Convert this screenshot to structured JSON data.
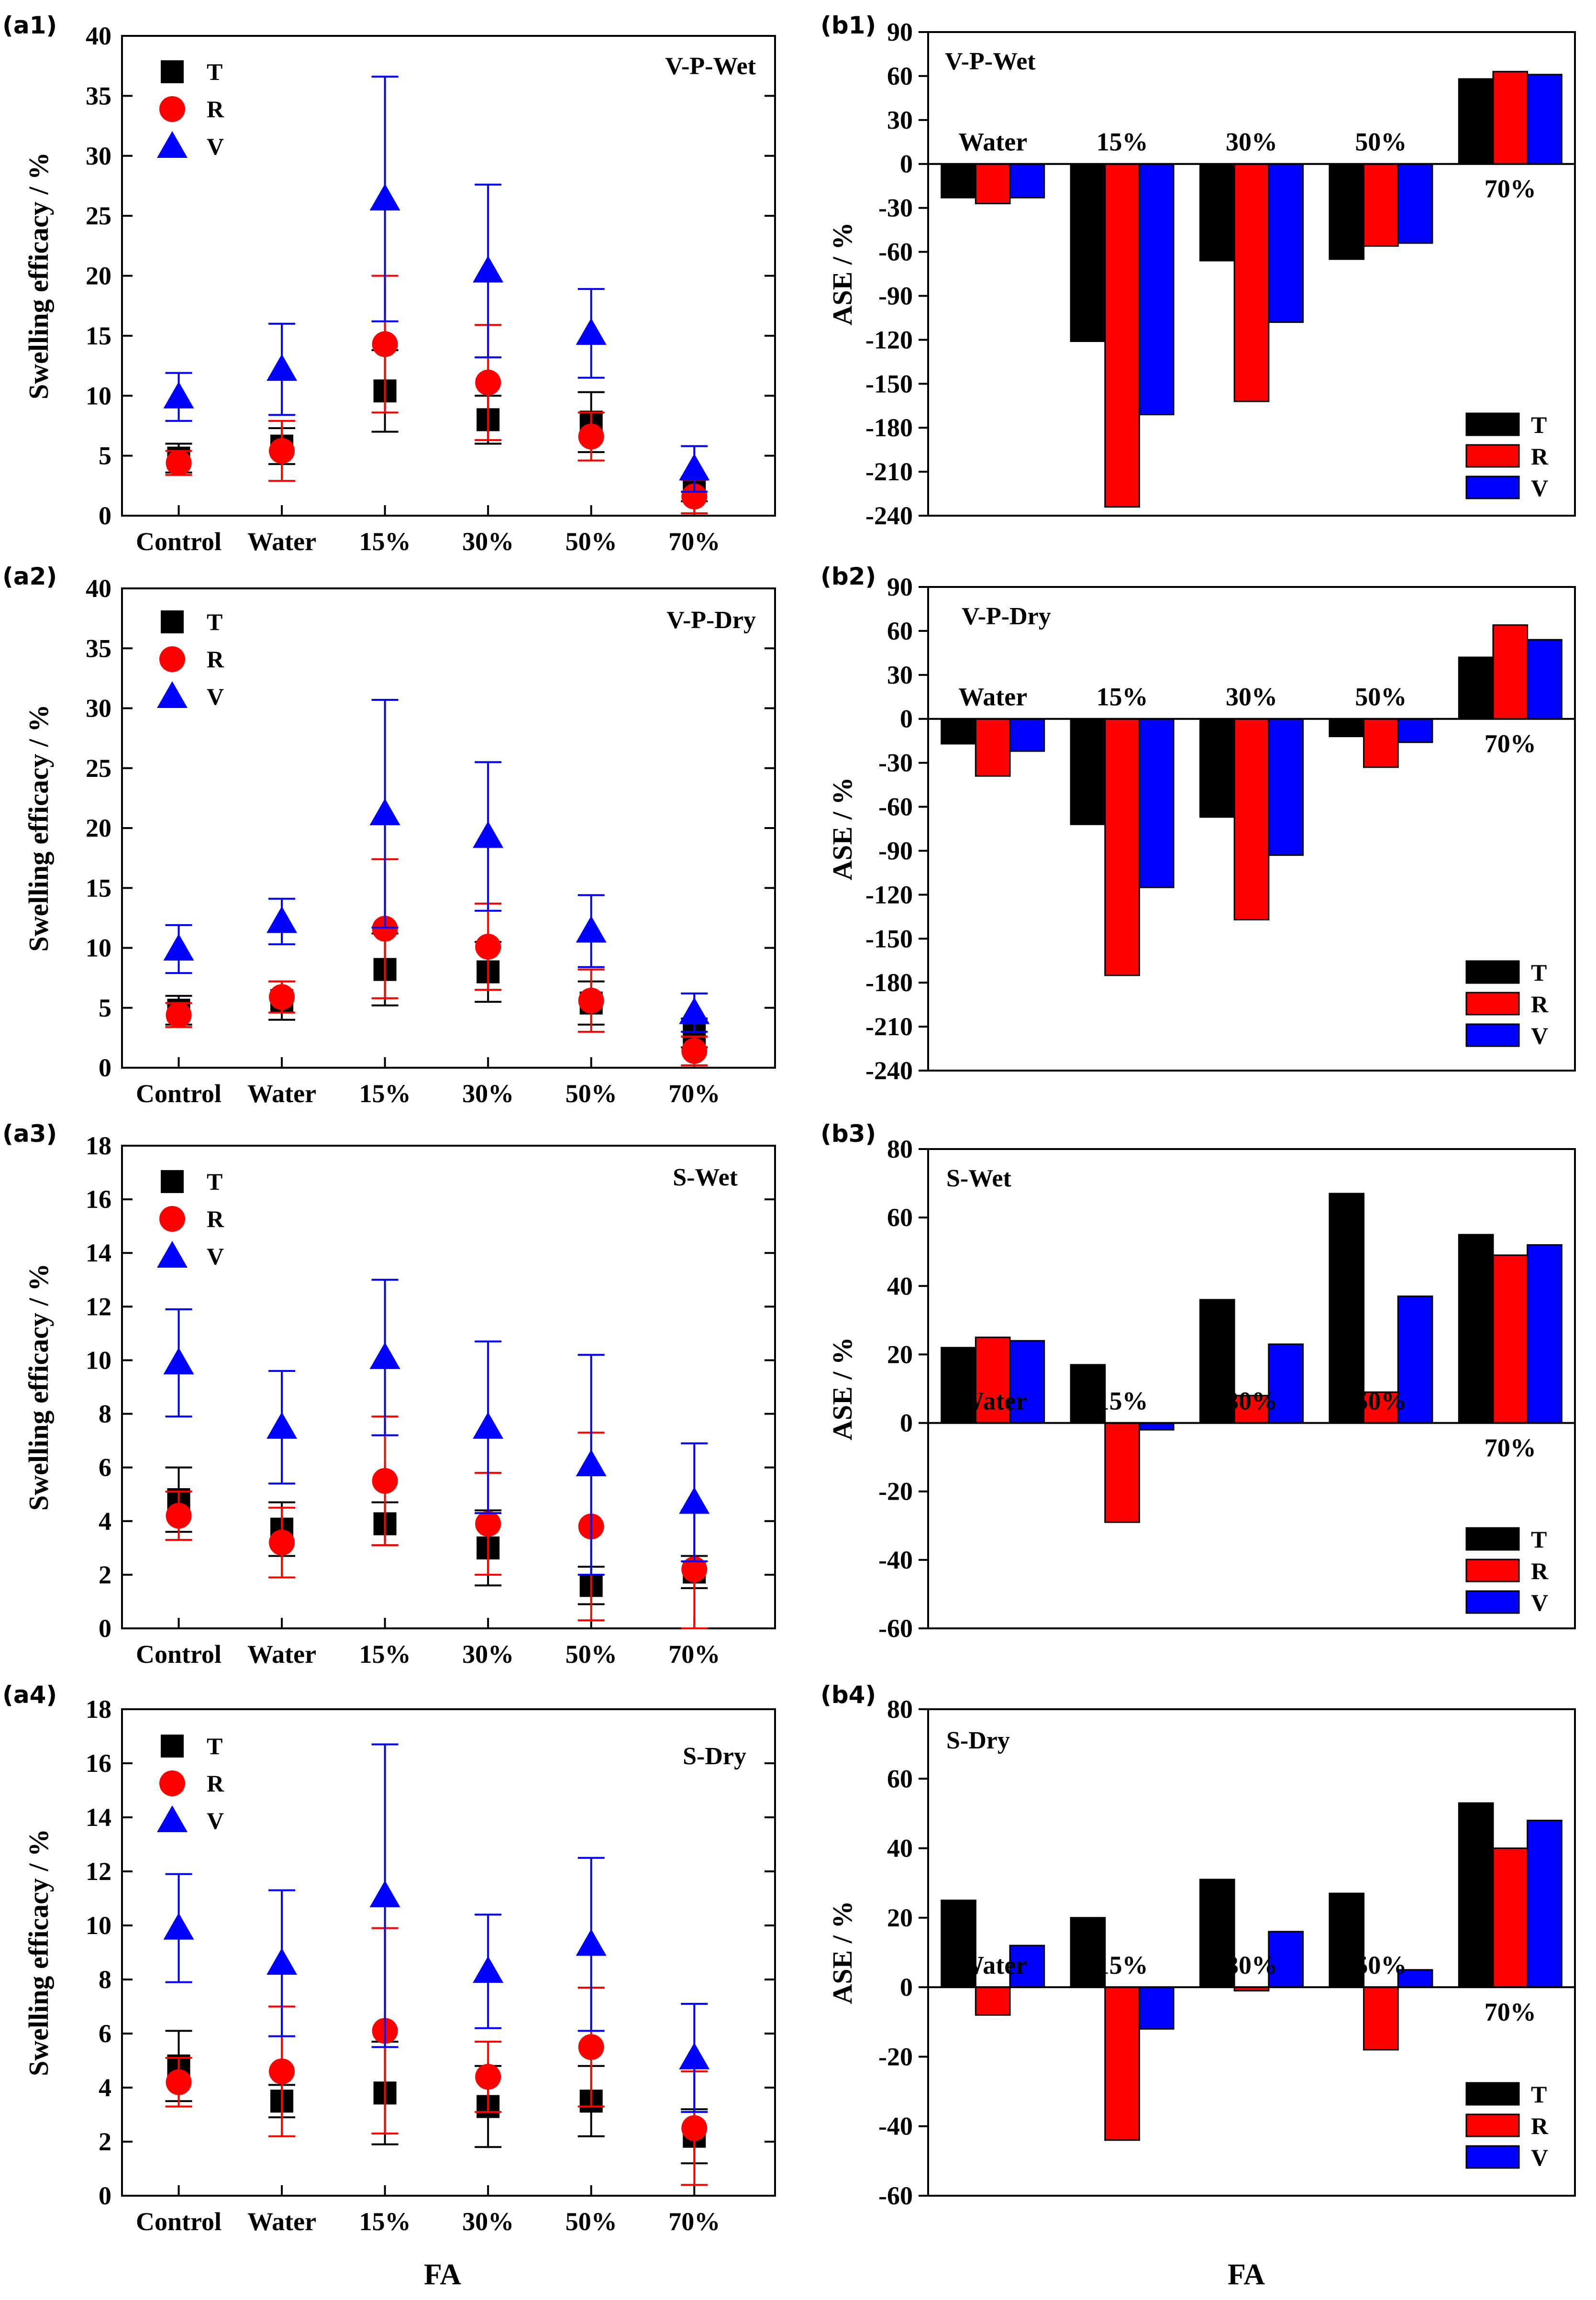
{
  "figure": {
    "x_axis_title": "FA",
    "series_colors": {
      "T": "#000000",
      "R": "#ff0000",
      "V": "#0000ff"
    }
  },
  "chart_data": [
    {
      "id": "a1",
      "panel_label": "(a1)",
      "type": "scatter",
      "title": "V-P-Wet",
      "xlabel": "",
      "ylabel": "Swelling efficacy / %",
      "categories": [
        "Control",
        "Water",
        "15%",
        "30%",
        "50%",
        "70%"
      ],
      "ylim": [
        0,
        40
      ],
      "yticks": [
        0,
        5,
        10,
        15,
        20,
        25,
        30,
        35,
        40
      ],
      "series": [
        {
          "name": "T",
          "marker": "square",
          "color": "#000000",
          "values": [
            4.8,
            5.8,
            10.4,
            8.0,
            7.8,
            2.2
          ],
          "errors": [
            1.2,
            1.5,
            3.4,
            2.0,
            2.5,
            1.0
          ]
        },
        {
          "name": "R",
          "marker": "circle",
          "color": "#ff0000",
          "values": [
            4.4,
            5.4,
            14.3,
            11.1,
            6.6,
            1.6
          ],
          "errors": [
            1.0,
            2.5,
            5.7,
            4.8,
            2.0,
            1.4
          ]
        },
        {
          "name": "V",
          "marker": "triangle",
          "color": "#0000ff",
          "values": [
            9.9,
            12.2,
            26.4,
            20.4,
            15.2,
            3.9
          ],
          "errors": [
            2.0,
            3.8,
            10.2,
            7.2,
            3.7,
            1.9
          ]
        }
      ]
    },
    {
      "id": "b1",
      "panel_label": "(b1)",
      "type": "bar",
      "title": "V-P-Wet",
      "xlabel": "",
      "ylabel": "ASE / %",
      "categories": [
        "Water",
        "15%",
        "30%",
        "50%",
        "70%"
      ],
      "ylim": [
        -240,
        90
      ],
      "yticks": [
        90,
        60,
        30,
        0,
        -30,
        -60,
        -90,
        -120,
        -150,
        -180,
        -210,
        -240
      ],
      "series": [
        {
          "name": "T",
          "color": "#000000",
          "values": [
            -23,
            -121,
            -66,
            -65,
            58
          ]
        },
        {
          "name": "R",
          "color": "#ff0000",
          "values": [
            -27,
            -234,
            -162,
            -56,
            63
          ]
        },
        {
          "name": "V",
          "color": "#0000ff",
          "values": [
            -23,
            -171,
            -108,
            -54,
            61
          ]
        }
      ]
    },
    {
      "id": "a2",
      "panel_label": "(a2)",
      "type": "scatter",
      "title": "V-P-Dry",
      "xlabel": "",
      "ylabel": "Swelling efficacy / %",
      "categories": [
        "Control",
        "Water",
        "15%",
        "30%",
        "50%",
        "70%"
      ],
      "ylim": [
        0,
        40
      ],
      "yticks": [
        0,
        5,
        10,
        15,
        20,
        25,
        30,
        35,
        40
      ],
      "series": [
        {
          "name": "T",
          "marker": "square",
          "color": "#000000",
          "values": [
            4.8,
            5.6,
            8.2,
            8.0,
            5.4,
            2.9
          ],
          "errors": [
            1.2,
            1.6,
            3.0,
            2.5,
            1.8,
            1.2
          ]
        },
        {
          "name": "R",
          "marker": "circle",
          "color": "#ff0000",
          "values": [
            4.4,
            5.9,
            11.6,
            10.1,
            5.6,
            1.4
          ],
          "errors": [
            1.0,
            1.3,
            5.8,
            3.6,
            2.6,
            1.2
          ]
        },
        {
          "name": "V",
          "marker": "triangle",
          "color": "#0000ff",
          "values": [
            9.9,
            12.2,
            21.2,
            19.3,
            11.4,
            4.6
          ],
          "errors": [
            2.0,
            1.9,
            9.5,
            6.2,
            3.0,
            1.6
          ]
        }
      ]
    },
    {
      "id": "b2",
      "panel_label": "(b2)",
      "type": "bar",
      "title": "V-P-Dry",
      "xlabel": "",
      "ylabel": "ASE / %",
      "categories": [
        "Water",
        "15%",
        "30%",
        "50%",
        "70%"
      ],
      "ylim": [
        -240,
        90
      ],
      "yticks": [
        90,
        60,
        30,
        0,
        -30,
        -60,
        -90,
        -120,
        -150,
        -180,
        -210,
        -240
      ],
      "series": [
        {
          "name": "T",
          "color": "#000000",
          "values": [
            -17,
            -72,
            -67,
            -12,
            42
          ]
        },
        {
          "name": "R",
          "color": "#ff0000",
          "values": [
            -39,
            -175,
            -137,
            -33,
            64
          ]
        },
        {
          "name": "V",
          "color": "#0000ff",
          "values": [
            -22,
            -115,
            -93,
            -16,
            54
          ]
        }
      ]
    },
    {
      "id": "a3",
      "panel_label": "(a3)",
      "type": "scatter",
      "title": "S-Wet",
      "xlabel": "",
      "ylabel": "Swelling efficacy / %",
      "categories": [
        "Control",
        "Water",
        "15%",
        "30%",
        "50%",
        "70%"
      ],
      "ylim": [
        0,
        18
      ],
      "yticks": [
        0,
        2,
        4,
        6,
        8,
        10,
        12,
        14,
        16,
        18
      ],
      "series": [
        {
          "name": "T",
          "marker": "square",
          "color": "#000000",
          "values": [
            4.8,
            3.7,
            3.9,
            3.0,
            1.6,
            2.1
          ],
          "errors": [
            1.2,
            1.0,
            0.8,
            1.4,
            0.7,
            0.6
          ]
        },
        {
          "name": "R",
          "marker": "circle",
          "color": "#ff0000",
          "values": [
            4.2,
            3.2,
            5.5,
            3.9,
            3.8,
            2.2
          ],
          "errors": [
            0.9,
            1.3,
            2.4,
            1.9,
            3.5,
            2.2
          ]
        },
        {
          "name": "V",
          "marker": "triangle",
          "color": "#0000ff",
          "values": [
            9.9,
            7.5,
            10.1,
            7.5,
            6.1,
            4.7
          ],
          "errors": [
            2.0,
            2.1,
            2.9,
            3.2,
            4.1,
            2.2
          ]
        }
      ]
    },
    {
      "id": "b3",
      "panel_label": "(b3)",
      "type": "bar",
      "title": "S-Wet",
      "xlabel": "",
      "ylabel": "ASE / %",
      "categories": [
        "Water",
        "15%",
        "30%",
        "50%",
        "70%"
      ],
      "ylim": [
        -60,
        80
      ],
      "yticks": [
        80,
        60,
        40,
        20,
        0,
        -20,
        -40,
        -60
      ],
      "series": [
        {
          "name": "T",
          "color": "#000000",
          "values": [
            22,
            17,
            36,
            67,
            55
          ]
        },
        {
          "name": "R",
          "color": "#ff0000",
          "values": [
            25,
            -29,
            8,
            9,
            49
          ]
        },
        {
          "name": "V",
          "color": "#0000ff",
          "values": [
            24,
            -2,
            23,
            37,
            52
          ]
        }
      ]
    },
    {
      "id": "a4",
      "panel_label": "(a4)",
      "type": "scatter",
      "title": "S-Dry",
      "xlabel": "",
      "ylabel": "Swelling efficacy / %",
      "categories": [
        "Control",
        "Water",
        "15%",
        "30%",
        "50%",
        "70%"
      ],
      "ylim": [
        0,
        18
      ],
      "yticks": [
        0,
        2,
        4,
        6,
        8,
        10,
        12,
        14,
        16,
        18
      ],
      "series": [
        {
          "name": "T",
          "marker": "square",
          "color": "#000000",
          "values": [
            4.8,
            3.5,
            3.8,
            3.3,
            3.5,
            2.2
          ],
          "errors": [
            1.3,
            0.6,
            1.9,
            1.5,
            1.3,
            1.0
          ]
        },
        {
          "name": "R",
          "marker": "circle",
          "color": "#ff0000",
          "values": [
            4.2,
            4.6,
            6.1,
            4.4,
            5.5,
            2.5
          ],
          "errors": [
            0.9,
            2.4,
            3.8,
            1.3,
            2.2,
            2.1
          ]
        },
        {
          "name": "V",
          "marker": "triangle",
          "color": "#0000ff",
          "values": [
            9.9,
            8.6,
            11.1,
            8.3,
            9.3,
            5.1
          ],
          "errors": [
            2.0,
            2.7,
            5.6,
            2.1,
            3.2,
            2.0
          ]
        }
      ]
    },
    {
      "id": "b4",
      "panel_label": "(b4)",
      "type": "bar",
      "title": "S-Dry",
      "xlabel": "",
      "ylabel": "ASE / %",
      "categories": [
        "Water",
        "15%",
        "30%",
        "50%",
        "70%"
      ],
      "ylim": [
        -60,
        80
      ],
      "yticks": [
        80,
        60,
        40,
        20,
        0,
        -20,
        -40,
        -60
      ],
      "series": [
        {
          "name": "T",
          "color": "#000000",
          "values": [
            25,
            20,
            31,
            27,
            53
          ]
        },
        {
          "name": "R",
          "color": "#ff0000",
          "values": [
            -8,
            -44,
            -1,
            -18,
            40
          ]
        },
        {
          "name": "V",
          "color": "#0000ff",
          "values": [
            12,
            -12,
            16,
            5,
            48
          ]
        }
      ]
    }
  ]
}
